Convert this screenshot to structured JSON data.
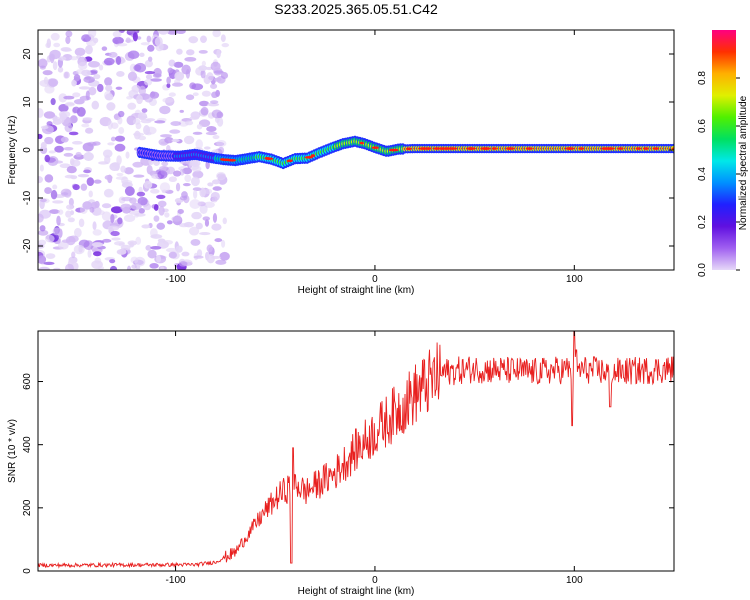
{
  "title": "S233.2025.365.05.51.C42",
  "chart_data": [
    {
      "type": "heatmap",
      "name": "spectrogram",
      "xlabel": "Height of straight line (km)",
      "ylabel": "Frequency (Hz)",
      "xlim": [
        -169,
        150
      ],
      "ylim": [
        -25,
        25
      ],
      "xticks": [
        -100,
        0,
        100
      ],
      "yticks": [
        -20,
        -10,
        0,
        10,
        20
      ],
      "colorbar": {
        "label": "Normalized spectral amplitude",
        "range": [
          0,
          1
        ],
        "ticks": [
          "0.0",
          "0.2",
          "0.4",
          "0.6",
          "0.8"
        ],
        "colors": [
          "#e6d8f8",
          "#a060f0",
          "#6010e0",
          "#2020ff",
          "#0090ff",
          "#00e8e8",
          "#00e060",
          "#50f000",
          "#e0f000",
          "#ffb000",
          "#ff3000",
          "#ff0080"
        ]
      },
      "ridge_frequency": {
        "x": [
          -118,
          -108,
          -98,
          -90,
          -82,
          -76,
          -70,
          -64,
          -58,
          -52,
          -46,
          -40,
          -34,
          -28,
          -22,
          -16,
          -10,
          -5,
          0,
          6,
          12,
          20,
          150
        ],
        "y": [
          -0.5,
          -1.2,
          -1.3,
          -0.9,
          -1.6,
          -2.0,
          -2.2,
          -1.8,
          -1.4,
          -1.9,
          -2.8,
          -1.8,
          -1.7,
          -0.6,
          0.4,
          1.3,
          1.8,
          1.3,
          0.5,
          -0.3,
          0.2,
          0.3,
          0.3
        ]
      },
      "noise_region_x": [
        -169,
        -80
      ]
    },
    {
      "type": "line",
      "name": "snr",
      "xlabel": "Height of straight line (km)",
      "ylabel": "SNR (10 * v/v)",
      "xlim": [
        -169,
        150
      ],
      "ylim": [
        0,
        760
      ],
      "xticks": [
        -100,
        0,
        100
      ],
      "yticks": [
        0,
        200,
        400,
        600
      ],
      "series": [
        {
          "name": "SNR",
          "color": "#e8201f",
          "trend_x": [
            -169,
            -90,
            -80,
            -70,
            -62,
            -55,
            -48,
            -40,
            -35,
            -30,
            -20,
            -10,
            0,
            10,
            20,
            30,
            35,
            50,
            80,
            100,
            120,
            150
          ],
          "trend_y": [
            18,
            20,
            28,
            60,
            130,
            190,
            240,
            280,
            250,
            270,
            310,
            380,
            440,
            500,
            560,
            610,
            630,
            640,
            630,
            640,
            630,
            640
          ],
          "spikes": [
            {
              "x": -42,
              "y": 25
            },
            {
              "x": -41,
              "y": 390
            },
            {
              "x": 99,
              "y": 460
            },
            {
              "x": 100,
              "y": 760
            },
            {
              "x": 101,
              "y": 700
            },
            {
              "x": 118,
              "y": 520
            }
          ]
        }
      ]
    }
  ]
}
